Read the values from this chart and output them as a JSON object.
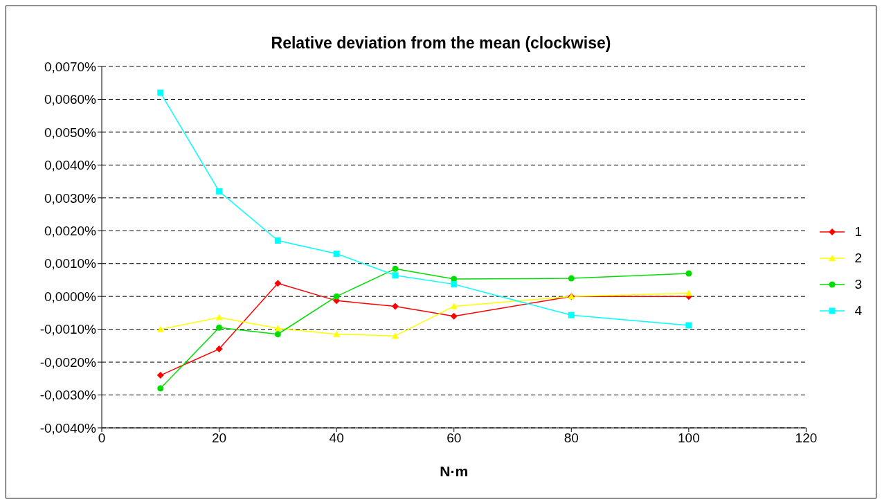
{
  "chart_data": {
    "type": "line",
    "title": "Relative deviation from the mean (clockwise)",
    "xlabel": "N·m",
    "x": [
      10,
      20,
      30,
      40,
      50,
      60,
      80,
      100
    ],
    "series": [
      {
        "name": "1",
        "color": "#ff0000",
        "marker": "diamond",
        "values": [
          -0.0024,
          -0.0016,
          0.0004,
          -0.00013,
          -0.0003,
          -0.0006,
          0,
          0
        ]
      },
      {
        "name": "2",
        "color": "#ffff00",
        "marker": "triangle",
        "values": [
          -0.001,
          -0.00064,
          -0.00097,
          -0.00115,
          -0.0012,
          -0.0003,
          0,
          0.0001
        ]
      },
      {
        "name": "3",
        "color": "#00dd00",
        "marker": "circle",
        "values": [
          -0.0028,
          -0.00095,
          -0.00115,
          0,
          0.00084,
          0.00053,
          0.00055,
          0.0007
        ]
      },
      {
        "name": "4",
        "color": "#00ffff",
        "marker": "square",
        "values": [
          0.0062,
          0.0032,
          0.0017,
          0.0013,
          0.00064,
          0.00037,
          -0.00057,
          -0.00088
        ]
      }
    ],
    "xlim": [
      0,
      120
    ],
    "xticks": [
      0,
      20,
      40,
      60,
      80,
      100,
      120
    ],
    "ylim": [
      -0.004,
      0.007
    ],
    "yticks": [
      {
        "value": -0.004,
        "label": "-0,0040%"
      },
      {
        "value": -0.003,
        "label": "-0,0030%"
      },
      {
        "value": -0.002,
        "label": "-0,0020%"
      },
      {
        "value": -0.001,
        "label": "-0,0010%"
      },
      {
        "value": 0,
        "label": "0,0000%"
      },
      {
        "value": 0.001,
        "label": "0,0010%"
      },
      {
        "value": 0.002,
        "label": "0,0020%"
      },
      {
        "value": 0.003,
        "label": "0,0030%"
      },
      {
        "value": 0.004,
        "label": "0,0040%"
      },
      {
        "value": 0.005,
        "label": "0,0050%"
      },
      {
        "value": 0.006,
        "label": "0,0060%"
      },
      {
        "value": 0.007,
        "label": "0,0070%"
      }
    ],
    "grid": "y",
    "legend": "right",
    "line_style": "solid"
  }
}
